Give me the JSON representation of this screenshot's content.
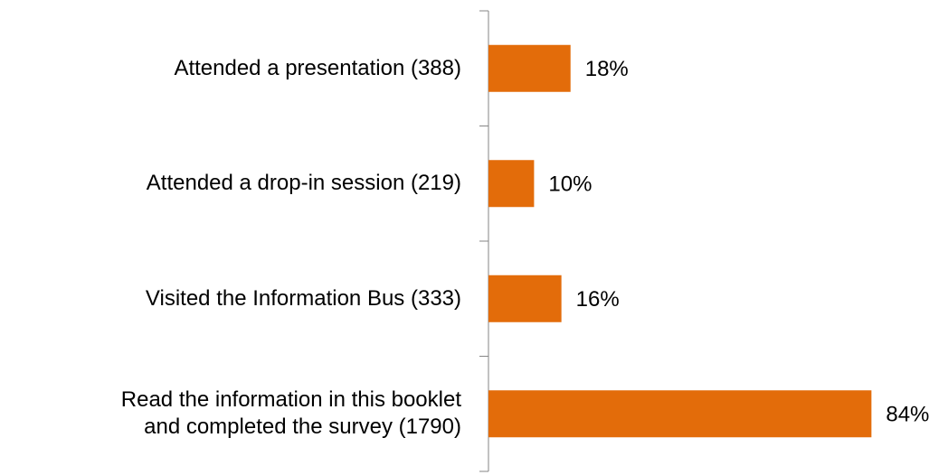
{
  "chart_data": {
    "type": "bar",
    "orientation": "horizontal",
    "categories": [
      "Attended a presentation (388)",
      "Attended a drop-in session (219)",
      "Visited the Information Bus (333)",
      "Read the information in this booklet\nand completed the survey (1790)"
    ],
    "values": [
      18,
      10,
      16,
      84
    ],
    "value_labels": [
      "18%",
      "10%",
      "16%",
      "84%"
    ],
    "color": "#e36c0a",
    "xlim": [
      0,
      100
    ]
  }
}
